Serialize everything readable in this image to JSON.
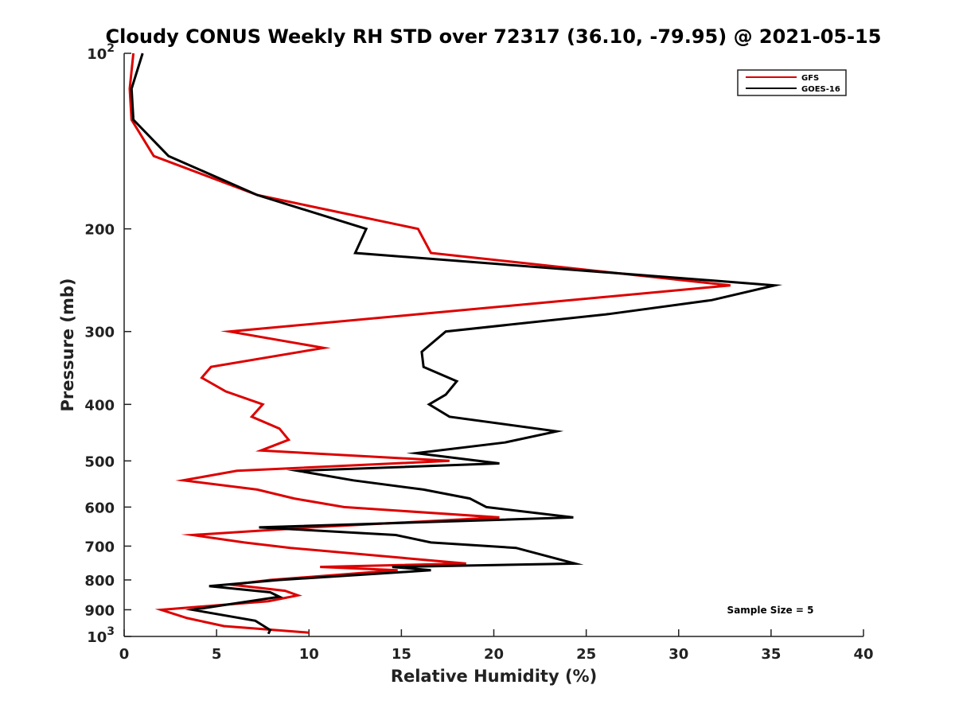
{
  "chart_data": {
    "type": "line",
    "title": "Cloudy CONUS Weekly RH STD over 72317 (36.10, -79.95) @ 2021-05-15",
    "xlabel": "Relative Humidity (%)",
    "ylabel": "Pressure (mb)",
    "xlim": [
      0,
      40
    ],
    "ylim": [
      100,
      1000
    ],
    "y_scale": "log",
    "y_reversed": true,
    "x_ticks": [
      0,
      5,
      10,
      15,
      20,
      25,
      30,
      35,
      40
    ],
    "y_ticks": [
      {
        "value": 100,
        "label": "10",
        "sup": "2"
      },
      {
        "value": 200,
        "label": "200"
      },
      {
        "value": 300,
        "label": "300"
      },
      {
        "value": 400,
        "label": "400"
      },
      {
        "value": 500,
        "label": "500"
      },
      {
        "value": 600,
        "label": "600"
      },
      {
        "value": 700,
        "label": "700"
      },
      {
        "value": 800,
        "label": "800"
      },
      {
        "value": 900,
        "label": "900"
      },
      {
        "value": 1000,
        "label": "10",
        "sup": "3"
      }
    ],
    "grid": false,
    "legend_position": "top-right",
    "series": [
      {
        "name": "GFS",
        "color": "#dd0000",
        "points": [
          [
            0.5,
            100
          ],
          [
            0.3,
            115
          ],
          [
            0.4,
            130
          ],
          [
            1.6,
            150
          ],
          [
            7.2,
            175
          ],
          [
            15.9,
            200
          ],
          [
            16.6,
            220
          ],
          [
            32.8,
            250
          ],
          [
            16.0,
            280
          ],
          [
            5.7,
            300
          ],
          [
            10.8,
            320
          ],
          [
            4.7,
            345
          ],
          [
            4.2,
            360
          ],
          [
            5.5,
            380
          ],
          [
            7.5,
            400
          ],
          [
            6.9,
            420
          ],
          [
            8.4,
            440
          ],
          [
            8.9,
            460
          ],
          [
            7.4,
            480
          ],
          [
            17.6,
            500
          ],
          [
            6.1,
            520
          ],
          [
            3.2,
            540
          ],
          [
            7.2,
            560
          ],
          [
            9.2,
            580
          ],
          [
            11.9,
            600
          ],
          [
            20.3,
            625
          ],
          [
            10.1,
            650
          ],
          [
            3.7,
            670
          ],
          [
            6.5,
            690
          ],
          [
            9.0,
            705
          ],
          [
            18.5,
            750
          ],
          [
            10.6,
            760
          ],
          [
            14.8,
            770
          ],
          [
            7.9,
            800
          ],
          [
            5.8,
            815
          ],
          [
            8.7,
            835
          ],
          [
            9.4,
            850
          ],
          [
            7.8,
            870
          ],
          [
            2.0,
            900
          ],
          [
            3.4,
            930
          ],
          [
            5.4,
            960
          ],
          [
            10.0,
            985
          ]
        ]
      },
      {
        "name": "GOES-16",
        "color": "#000000",
        "points": [
          [
            1.0,
            100
          ],
          [
            0.4,
            115
          ],
          [
            0.5,
            130
          ],
          [
            2.4,
            150
          ],
          [
            7.2,
            175
          ],
          [
            13.1,
            200
          ],
          [
            12.5,
            220
          ],
          [
            35.2,
            250
          ],
          [
            31.8,
            265
          ],
          [
            26.2,
            280
          ],
          [
            17.4,
            300
          ],
          [
            16.1,
            325
          ],
          [
            16.2,
            345
          ],
          [
            18.0,
            365
          ],
          [
            17.4,
            385
          ],
          [
            16.5,
            400
          ],
          [
            17.6,
            420
          ],
          [
            23.4,
            445
          ],
          [
            20.6,
            465
          ],
          [
            15.8,
            485
          ],
          [
            20.3,
            505
          ],
          [
            9.4,
            520
          ],
          [
            12.4,
            540
          ],
          [
            16.2,
            560
          ],
          [
            18.7,
            580
          ],
          [
            19.6,
            600
          ],
          [
            24.3,
            625
          ],
          [
            7.3,
            650
          ],
          [
            14.7,
            670
          ],
          [
            16.6,
            690
          ],
          [
            21.2,
            705
          ],
          [
            24.4,
            750
          ],
          [
            14.5,
            760
          ],
          [
            16.6,
            770
          ],
          [
            8.4,
            800
          ],
          [
            4.6,
            820
          ],
          [
            7.9,
            840
          ],
          [
            8.4,
            855
          ],
          [
            3.7,
            900
          ],
          [
            7.1,
            940
          ],
          [
            7.9,
            975
          ],
          [
            7.8,
            990
          ]
        ]
      }
    ],
    "annotations": [
      "Sample Size = 5"
    ]
  }
}
